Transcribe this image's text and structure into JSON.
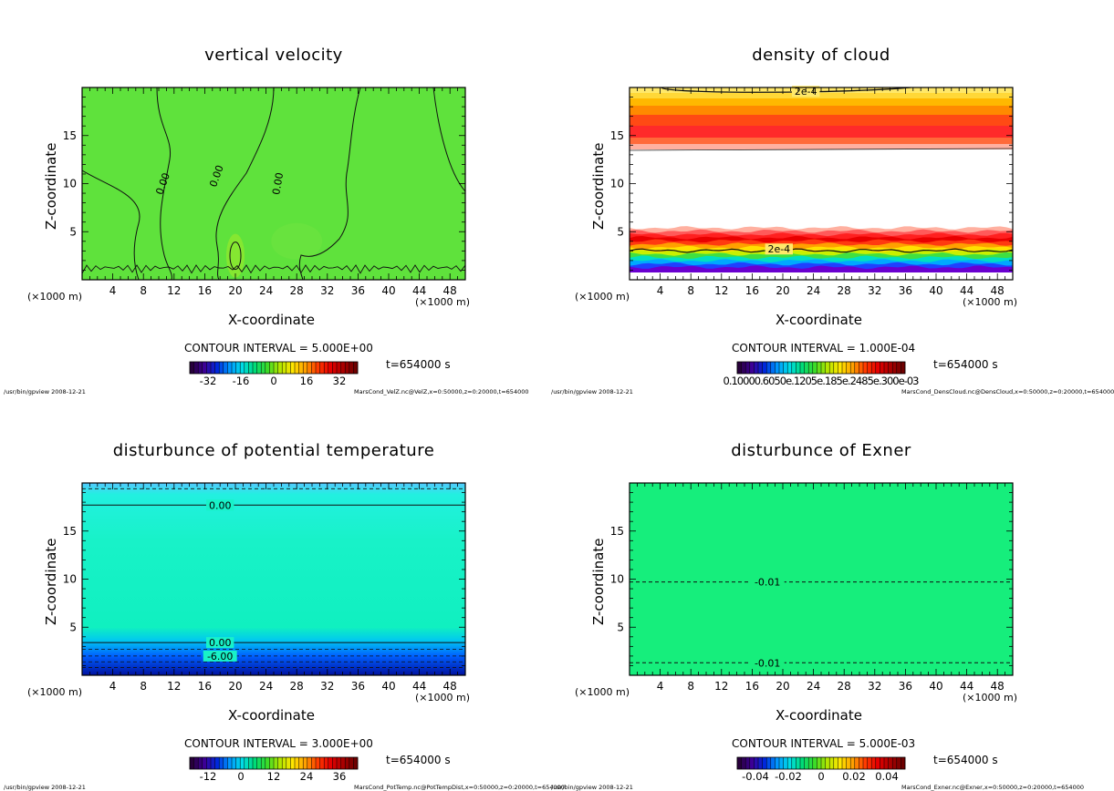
{
  "chart_data": [
    {
      "type": "heatmap",
      "title": "vertical velocity",
      "xlabel": "X-coordinate",
      "ylabel": "Z-coordinate",
      "x_unit_left": "(×1000 m)",
      "x_unit_right": "(×1000 m)",
      "xlim": [
        0,
        50
      ],
      "ylim": [
        0,
        20
      ],
      "xticks": [
        4,
        8,
        12,
        16,
        20,
        24,
        28,
        32,
        36,
        40,
        44,
        48
      ],
      "yticks": [
        5,
        10,
        15
      ],
      "contour_interval": "CONTOUR INTERVAL = 5.000E+00",
      "time": "t=654000 s",
      "colorbar_ticks": [
        "-32",
        "-16",
        "0",
        "16",
        "32"
      ],
      "contour_labels": [
        "0.00",
        "0.00",
        "0.00"
      ],
      "footer_left": "/usr/bin/gpview  2008-12-21",
      "footer_right": "MarsCond_VelZ.nc@VelZ,x=0:50000,z=0:20000,t=654000"
    },
    {
      "type": "heatmap",
      "title": "density of cloud",
      "xlabel": "X-coordinate",
      "ylabel": "Z-coordinate",
      "x_unit_left": "(×1000 m)",
      "x_unit_right": "(×1000 m)",
      "xlim": [
        0,
        50
      ],
      "ylim": [
        0,
        20
      ],
      "xticks": [
        4,
        8,
        12,
        16,
        20,
        24,
        28,
        32,
        36,
        40,
        44,
        48
      ],
      "yticks": [
        5,
        10,
        15
      ],
      "contour_interval": "CONTOUR INTERVAL = 1.000E-04",
      "time": "t=654000 s",
      "colorbar_ticks": [
        "0.10000.6050e.1205e.185e.2485e.300e-03"
      ],
      "contour_labels": [
        "2e-4",
        "2e-4"
      ],
      "footer_left": "/usr/bin/gpview  2008-12-21",
      "footer_right": "MarsCond_DensCloud.nc@DensCloud,x=0:50000,z=0:20000,t=654000"
    },
    {
      "type": "heatmap",
      "title": "disturbunce of potential temperature",
      "xlabel": "X-coordinate",
      "ylabel": "Z-coordinate",
      "x_unit_left": "(×1000 m)",
      "x_unit_right": "(×1000 m)",
      "xlim": [
        0,
        50
      ],
      "ylim": [
        0,
        20
      ],
      "xticks": [
        4,
        8,
        12,
        16,
        20,
        24,
        28,
        32,
        36,
        40,
        44,
        48
      ],
      "yticks": [
        5,
        10,
        15
      ],
      "contour_interval": "CONTOUR INTERVAL = 3.000E+00",
      "time": "t=654000 s",
      "colorbar_ticks": [
        "-12",
        "0",
        "12",
        "24",
        "36"
      ],
      "contour_labels": [
        "0.00",
        "0.00",
        "-6.00"
      ],
      "footer_left": "/usr/bin/gpview  2008-12-21",
      "footer_right": "MarsCond_PotTemp.nc@PotTempDist,x=0:50000,z=0:20000,t=654000"
    },
    {
      "type": "heatmap",
      "title": "disturbunce of Exner",
      "xlabel": "X-coordinate",
      "ylabel": "Z-coordinate",
      "x_unit_left": "(×1000 m)",
      "x_unit_right": "(×1000 m)",
      "xlim": [
        0,
        50
      ],
      "ylim": [
        0,
        20
      ],
      "xticks": [
        4,
        8,
        12,
        16,
        20,
        24,
        28,
        32,
        36,
        40,
        44,
        48
      ],
      "yticks": [
        5,
        10,
        15
      ],
      "contour_interval": "CONTOUR INTERVAL = 5.000E-03",
      "time": "t=654000 s",
      "colorbar_ticks": [
        "-0.04",
        "-0.02",
        "0",
        "0.02",
        "0.04"
      ],
      "contour_labels": [
        "-0.01",
        "-0.01"
      ],
      "footer_left": "/usr/bin/gpview  2008-12-21",
      "footer_right": "MarsCond_Exner.nc@Exner,x=0:50000,z=0:20000,t=654000"
    }
  ]
}
